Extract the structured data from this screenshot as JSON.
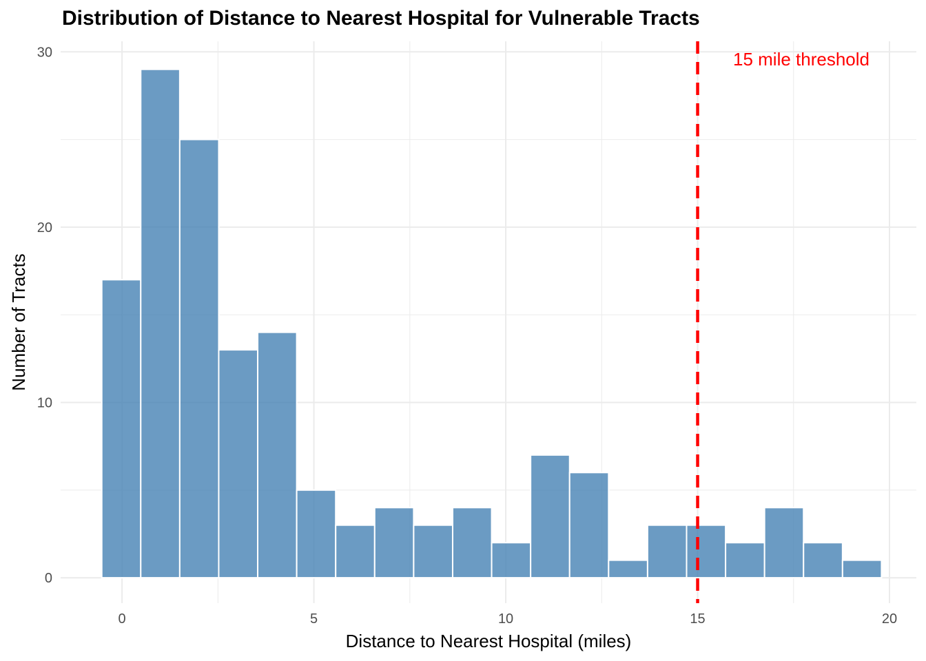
{
  "chart_data": {
    "type": "bar",
    "title": "Distribution of Distance to Nearest Hospital for Vulnerable Tracts",
    "xlabel": "Distance to Nearest Hospital (miles)",
    "ylabel": "Number of Tracts",
    "bin_width": 1.016,
    "bins": [
      {
        "center": -0.02,
        "count": 17
      },
      {
        "center": 0.996,
        "count": 29
      },
      {
        "center": 2.012,
        "count": 25
      },
      {
        "center": 3.028,
        "count": 13
      },
      {
        "center": 4.044,
        "count": 14
      },
      {
        "center": 5.06,
        "count": 5
      },
      {
        "center": 6.076,
        "count": 3
      },
      {
        "center": 7.092,
        "count": 4
      },
      {
        "center": 8.108,
        "count": 3
      },
      {
        "center": 9.124,
        "count": 4
      },
      {
        "center": 10.14,
        "count": 2
      },
      {
        "center": 11.156,
        "count": 7
      },
      {
        "center": 12.172,
        "count": 6
      },
      {
        "center": 13.188,
        "count": 1
      },
      {
        "center": 14.204,
        "count": 3
      },
      {
        "center": 15.22,
        "count": 3
      },
      {
        "center": 16.236,
        "count": 2
      },
      {
        "center": 17.252,
        "count": 4
      },
      {
        "center": 18.268,
        "count": 2
      },
      {
        "center": 19.284,
        "count": 1
      }
    ],
    "xlim": [
      -1.6,
      20.7
    ],
    "ylim": [
      -1.45,
      30.6
    ],
    "x_ticks": [
      0,
      5,
      10,
      15,
      20
    ],
    "x_tick_labels": [
      "0",
      "5",
      "10",
      "15",
      "20"
    ],
    "y_ticks": [
      0,
      10,
      20,
      30
    ],
    "y_tick_labels": [
      "0",
      "10",
      "20",
      "30"
    ],
    "threshold": {
      "x": 15,
      "label": "15 mile threshold",
      "color": "#ff0000",
      "style": "dashed"
    },
    "colors": {
      "bar_fill": "#4682b4",
      "bar_outline": "#ffffff",
      "grid": "#ebebeb",
      "axis_text": "#4d4d4d"
    },
    "grid": true,
    "legend": "none"
  }
}
